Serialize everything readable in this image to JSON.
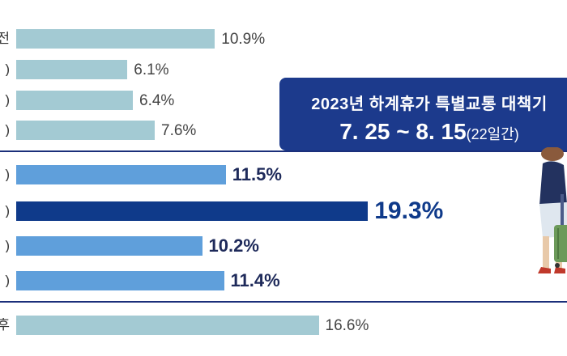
{
  "chart_data": {
    "type": "bar",
    "orientation": "horizontal",
    "categories": [
      "전",
      "(",
      "(",
      "(",
      "(",
      "(",
      "(",
      "(",
      "후"
    ],
    "values": [
      10.9,
      6.1,
      6.4,
      7.6,
      11.5,
      19.3,
      10.2,
      11.4,
      16.6
    ],
    "value_labels": [
      "10.9%",
      "6.1%",
      "6.4%",
      "7.6%",
      "11.5%",
      "19.3%",
      "10.2%",
      "11.4%",
      "16.6%"
    ],
    "highlight_index": 5,
    "period_indices": [
      4,
      5,
      6,
      7
    ],
    "xlim": [
      0,
      20
    ],
    "grid": false,
    "colors": {
      "outside": "#a3cad3",
      "period": "#5f9fdb",
      "peak": "#0f3a8a",
      "divider": "#1b2f7a",
      "callout": "#1c3a8c"
    }
  },
  "callout": {
    "title": "2023년 하계휴가 특별교통 대책기",
    "date": "7. 25 ~ 8. 15",
    "duration": "(22일간)"
  },
  "illustration": {
    "icon": "traveler-with-suitcase-icon"
  }
}
